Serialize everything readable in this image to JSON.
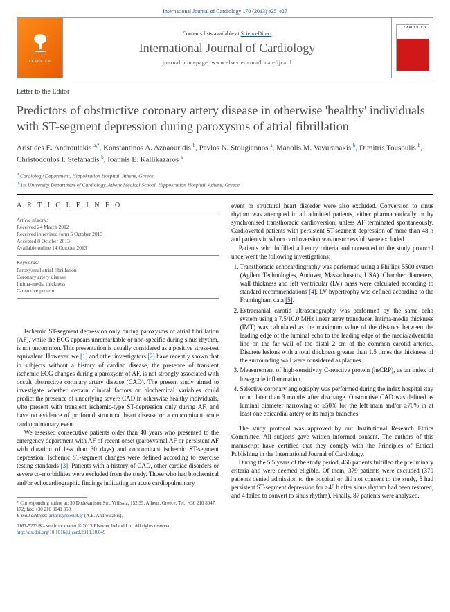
{
  "citation": "International Journal of Cardiology 170 (2013) e25–e27",
  "masthead": {
    "publisher": "ELSEVIER",
    "contents_prefix": "Contents lists available at ",
    "contents_link": "ScienceDirect",
    "journal_title": "International Journal of Cardiology",
    "homepage": "journal homepage: www.elsevier.com/locate/ijcard",
    "cover_label": "CARDIOLOGY"
  },
  "section_type": "Letter to the Editor",
  "title": "Predictors of obstructive coronary artery disease in otherwise 'healthy' individuals with ST-segment depression during paroxysms of atrial fibrillation",
  "authors_html": "Aristides E. Androulakis <span class='sup'>a,</span><span class='sup star'>*</span>, Konstantinos A. Aznaouridis <span class='sup'>b</span>, Pavlos N. Stougiannos <span class='sup'>a</span>, Manolis M. Vavuranakis <span class='sup'>b</span>, Dimitris Tousoulis <span class='sup'>b</span>, Christodoulos I. Stefanadis <span class='sup'>b</span>, Ioannis E. Kallikazaros <span class='sup'>a</span>",
  "affiliations": [
    {
      "key": "a",
      "text": "Cardiology Department, Hippokration Hospital, Athens, Greece"
    },
    {
      "key": "b",
      "text": "1st University Department of Cardiology, Athens Medical School, Hippokration Hospital, Athens, Greece"
    }
  ],
  "article_info": {
    "heading": "A R T I C L E   I N F O",
    "history_label": "Article history:",
    "history": [
      "Received 24 March 2012",
      "Received in revised form 5 October 2013",
      "Accepted 8 October 2013",
      "Available online 14 October 2013"
    ],
    "keywords_label": "Keywords:",
    "keywords": [
      "Paroxysmal atrial fibrillation",
      "Coronary artery disease",
      "Intima-media thickness",
      "C-reactive protein"
    ]
  },
  "left_body": [
    "Ischemic ST-segment depression only during paroxysms of atrial fibrillation (AF), while the ECG appears unremarkable or non-specific during sinus rhythm, is not uncommon. This presentation is usually considered as a positive stress-test equivalent. However, we [1] and other investigators [2] have recently shown that in subjects without a history of cardiac disease, the presence of transient ischemic ECG changes during a paroxysm of AF, is not strongly associated with occult obstructive coronary artery disease (CAD). The present study aimed to investigate whether certain clinical factors or biochemical variables could predict the presence of underlying severe CAD in otherwise healthy individuals, who present with transient ischemic-type ST-depression only during AF, and have no evidence of profound structural heart disease or a concomitant acute cardiopulmonary event.",
    "We assessed consecutive patients older than 40 years who presented to the emergency department with AF of recent onset (paroxysmal AF or persistent AF with duration of less than 30 days) and concomitant ischemic ST-segment depression. Ischemic ST-segment changes were defined according to exercise testing standards [3]. Patients with a history of CAD, other cardiac disorders or severe co-morbidities were excluded from the study. Those who had biochemical and/or echocardiographic findings indicating an acute cardiopulmonary"
  ],
  "right_body_top": [
    "event or structural heart disorder were also excluded. Conversion to sinus rhythm was attempted in all admitted patients, either pharmaceutically or by synchronised transthoracic cardioversion, unless AF terminated spontaneously. Cardioverted patients with persistent ST-segment depression of more than 48 h and patients in whom cardioversion was unsuccessful, were excluded.",
    "Patients who fulfilled all entry criteria and consented to the study protocol underwent the following investigations:"
  ],
  "methods": [
    "Transthoracic echocardiography was performed using a Phillips 5500 system (Agilent Technologies, Andover, Massachusetts, USA). Chamber diameters, wall thickness and left ventricular (LV) mass were calculated according to standard recommendations [4]. LV hypertrophy was defined according to the Framingham data [5].",
    "Extracranial carotid ultrasonography was performed by the same echo system using a 7.5/10.0 MHz linear array transducer. Intima-media thickness (IMT) was calculated as the maximum value of the distance between the leading edge of the luminal echo to the leading edge of the media/adventitia line on the far wall of the distal 2 cm of the common carotid arteries. Discrete lesions with a total thickness greater than 1.5 times the thickness of the surrounding wall were considered as plaques.",
    "Measurement of high-sensitivity C-reactive protein (hsCRP), as an index of low-grade inflammation.",
    "Selective coronary angiography was performed during the index hospital stay or no later than 3 months after discharge. Obstructive CAD was defined as luminal diameter narrowing of ≥50% for the left main and/or ≥70% in at least one epicardial artery or its major branches."
  ],
  "right_body_bottom": [
    "The study protocol was approved by our Institutional Research Ethics Committee. All subjects gave written informed consent. The authors of this manuscript have certified that they comply with the Principles of Ethical Publishing in the International Journal of Cardiology.",
    "During the 5.5 years of the study period, 466 patients fulfilled the preliminary criteria and were deemed eligible. Of them, 379 patients were excluded (370 patients denied admission to the hospital or did not consent to the study, 5 had persistent ST-segment depression for >48 h after sinus rhythm had been restored, and 4 failed to convert to sinus rhythm). Finally, 87 patients were analyzed."
  ],
  "footnotes": {
    "corr": "* Corresponding author at: 30 Dodekanisou Str., Vrilissia, 152 35, Athens, Greece. Tel.: +30 210 8047 172; fax: +30 210 8041 350.",
    "email_label": "E-mail address:",
    "email": "antaris@otenet.gr",
    "email_who": "(A.E. Androulakis)."
  },
  "copyright": {
    "line1": "0167-5273/$ – see front matter © 2013 Elsevier Ireland Ltd. All rights reserved.",
    "doi": "http://dx.doi.org/10.1016/j.ijcard.2013.10.049"
  },
  "colors": {
    "link": "#1a5490",
    "brand_orange": "#ff8c1a",
    "title_gray": "#4a4a4a"
  }
}
